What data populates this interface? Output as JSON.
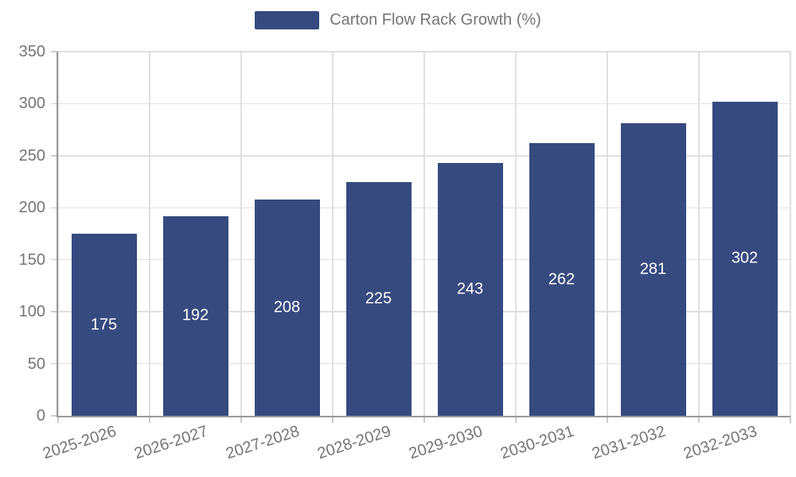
{
  "chart_data": {
    "type": "bar",
    "title": "Carton Flow Rack Growth (%)",
    "categories": [
      "2025-2026",
      "2026-2027",
      "2027-2028",
      "2028-2029",
      "2029-2030",
      "2030-2031",
      "2031-2032",
      "2032-2033"
    ],
    "values": [
      175,
      192,
      208,
      225,
      243,
      262,
      281,
      302
    ],
    "xlabel": "",
    "ylabel": "",
    "ylim": [
      0,
      350
    ],
    "yticks": [
      0,
      50,
      100,
      150,
      200,
      250,
      300,
      350
    ],
    "grid": true,
    "legend_position": "top",
    "x_tick_rotation": -18,
    "value_labels_shown": true,
    "bar_color": "#364A80",
    "value_label_color": "#ffffff",
    "grid_color": "#e0e0e0",
    "tick_color": "#cbcbcb",
    "axis_color": "#9a9a9a",
    "text_color": "#757575"
  }
}
